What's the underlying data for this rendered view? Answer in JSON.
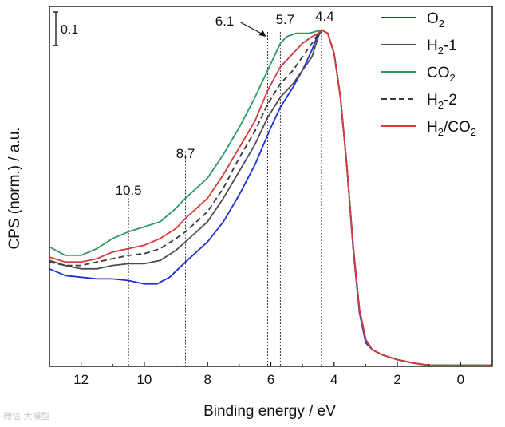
{
  "chart_data": {
    "type": "line",
    "title": "",
    "xlabel": "Binding energy / eV",
    "ylabel": "CPS (norm.) / a.u.",
    "xlim": [
      13,
      -1
    ],
    "ylim": [
      0,
      1.07
    ],
    "x_ticks": [
      12,
      10,
      8,
      6,
      4,
      2,
      0
    ],
    "x_tick_labels": [
      "12",
      "10",
      "8",
      "6",
      "4",
      "2",
      "0"
    ],
    "scale_bar": {
      "label": "0.1",
      "value": 0.1
    },
    "grid": false,
    "legend_position": "top-right",
    "series": [
      {
        "name": "O2",
        "label_main": "O",
        "label_sub": "2",
        "color": "#1f2fd6",
        "dash": "solid",
        "points": [
          [
            13,
            0.29
          ],
          [
            12.5,
            0.27
          ],
          [
            12,
            0.265
          ],
          [
            11.5,
            0.26
          ],
          [
            11,
            0.26
          ],
          [
            10.5,
            0.255
          ],
          [
            10,
            0.245
          ],
          [
            9.6,
            0.245
          ],
          [
            9.2,
            0.265
          ],
          [
            8.7,
            0.31
          ],
          [
            8,
            0.37
          ],
          [
            7.5,
            0.43
          ],
          [
            7,
            0.51
          ],
          [
            6.5,
            0.6
          ],
          [
            6,
            0.71
          ],
          [
            5.7,
            0.77
          ],
          [
            5.3,
            0.83
          ],
          [
            5,
            0.88
          ],
          [
            4.7,
            0.94
          ],
          [
            4.5,
            0.99
          ],
          [
            4.4,
            1.0
          ],
          [
            4.2,
            0.99
          ],
          [
            4,
            0.93
          ],
          [
            3.8,
            0.8
          ],
          [
            3.6,
            0.6
          ],
          [
            3.4,
            0.35
          ],
          [
            3.2,
            0.16
          ],
          [
            3,
            0.07
          ],
          [
            2.8,
            0.05
          ],
          [
            2.5,
            0.035
          ],
          [
            2,
            0.02
          ],
          [
            1.5,
            0.01
          ],
          [
            1,
            0.003
          ],
          [
            0,
            0.003
          ],
          [
            -1,
            0.003
          ]
        ]
      },
      {
        "name": "H2-1",
        "label_main": "H",
        "label_sub": "2",
        "label_suffix": "-1",
        "color": "#4d4d4d",
        "dash": "solid",
        "points": [
          [
            13,
            0.315
          ],
          [
            12.5,
            0.3
          ],
          [
            12,
            0.29
          ],
          [
            11.5,
            0.29
          ],
          [
            11,
            0.3
          ],
          [
            10.5,
            0.305
          ],
          [
            10,
            0.305
          ],
          [
            9.5,
            0.315
          ],
          [
            9,
            0.345
          ],
          [
            8.7,
            0.37
          ],
          [
            8,
            0.43
          ],
          [
            7.5,
            0.5
          ],
          [
            7,
            0.58
          ],
          [
            6.5,
            0.66
          ],
          [
            6.1,
            0.74
          ],
          [
            5.7,
            0.8
          ],
          [
            5.3,
            0.84
          ],
          [
            5,
            0.88
          ],
          [
            4.7,
            0.92
          ],
          [
            4.5,
            0.98
          ],
          [
            4.4,
            1.0
          ],
          [
            4.2,
            0.99
          ],
          [
            4,
            0.93
          ],
          [
            3.8,
            0.8
          ],
          [
            3.6,
            0.6
          ],
          [
            3.4,
            0.36
          ],
          [
            3.2,
            0.17
          ],
          [
            3,
            0.08
          ],
          [
            2.8,
            0.05
          ],
          [
            2.5,
            0.035
          ],
          [
            2,
            0.02
          ],
          [
            1.5,
            0.01
          ],
          [
            1,
            0.003
          ],
          [
            0,
            0.003
          ],
          [
            -1,
            0.003
          ]
        ]
      },
      {
        "name": "CO2",
        "label_main": "CO",
        "label_sub": "2",
        "color": "#2e9a64",
        "dash": "solid",
        "points": [
          [
            13,
            0.355
          ],
          [
            12.5,
            0.33
          ],
          [
            12,
            0.33
          ],
          [
            11.5,
            0.35
          ],
          [
            11,
            0.38
          ],
          [
            10.5,
            0.4
          ],
          [
            10,
            0.415
          ],
          [
            9.5,
            0.43
          ],
          [
            9,
            0.47
          ],
          [
            8.7,
            0.5
          ],
          [
            8,
            0.56
          ],
          [
            7.5,
            0.63
          ],
          [
            7,
            0.71
          ],
          [
            6.5,
            0.8
          ],
          [
            6.1,
            0.88
          ],
          [
            5.7,
            0.96
          ],
          [
            5.5,
            0.98
          ],
          [
            5.2,
            0.99
          ],
          [
            4.8,
            0.99
          ],
          [
            4.6,
            0.995
          ],
          [
            4.4,
            1.0
          ],
          [
            4.2,
            0.99
          ],
          [
            4,
            0.93
          ],
          [
            3.8,
            0.8
          ],
          [
            3.6,
            0.6
          ],
          [
            3.4,
            0.36
          ],
          [
            3.2,
            0.17
          ],
          [
            3,
            0.08
          ],
          [
            2.8,
            0.05
          ],
          [
            2.5,
            0.035
          ],
          [
            2,
            0.02
          ],
          [
            1.5,
            0.01
          ],
          [
            1,
            0.003
          ],
          [
            0,
            0.003
          ],
          [
            -1,
            0.003
          ]
        ]
      },
      {
        "name": "H2-2",
        "label_main": "H",
        "label_sub": "2",
        "label_suffix": "-2",
        "color": "#3a3a3a",
        "dash": "dashed",
        "points": [
          [
            13,
            0.31
          ],
          [
            12.5,
            0.3
          ],
          [
            12,
            0.3
          ],
          [
            11.5,
            0.31
          ],
          [
            11,
            0.32
          ],
          [
            10.5,
            0.33
          ],
          [
            10,
            0.335
          ],
          [
            9.5,
            0.35
          ],
          [
            9,
            0.38
          ],
          [
            8.7,
            0.4
          ],
          [
            8,
            0.46
          ],
          [
            7.5,
            0.53
          ],
          [
            7,
            0.62
          ],
          [
            6.5,
            0.7
          ],
          [
            6.1,
            0.78
          ],
          [
            5.7,
            0.84
          ],
          [
            5.3,
            0.88
          ],
          [
            5,
            0.92
          ],
          [
            4.7,
            0.96
          ],
          [
            4.5,
            0.99
          ],
          [
            4.4,
            1.0
          ],
          [
            4.2,
            0.99
          ],
          [
            4,
            0.93
          ],
          [
            3.8,
            0.8
          ],
          [
            3.6,
            0.6
          ],
          [
            3.4,
            0.36
          ],
          [
            3.2,
            0.17
          ],
          [
            3,
            0.08
          ],
          [
            2.8,
            0.05
          ],
          [
            2.5,
            0.035
          ],
          [
            2,
            0.02
          ],
          [
            1.5,
            0.01
          ],
          [
            1,
            0.003
          ],
          [
            0,
            0.003
          ],
          [
            -1,
            0.003
          ]
        ]
      },
      {
        "name": "H2/CO2",
        "label_main": "H",
        "label_sub": "2",
        "label_suffix": "/CO",
        "label_sub2": "2",
        "color": "#d63a3a",
        "dash": "solid",
        "points": [
          [
            13,
            0.325
          ],
          [
            12.5,
            0.31
          ],
          [
            12,
            0.31
          ],
          [
            11.5,
            0.32
          ],
          [
            11,
            0.34
          ],
          [
            10.5,
            0.35
          ],
          [
            10,
            0.36
          ],
          [
            9.5,
            0.38
          ],
          [
            9,
            0.41
          ],
          [
            8.7,
            0.44
          ],
          [
            8,
            0.5
          ],
          [
            7.5,
            0.57
          ],
          [
            7,
            0.65
          ],
          [
            6.5,
            0.73
          ],
          [
            6.1,
            0.82
          ],
          [
            5.7,
            0.89
          ],
          [
            5.3,
            0.93
          ],
          [
            5,
            0.96
          ],
          [
            4.7,
            0.98
          ],
          [
            4.5,
            0.99
          ],
          [
            4.4,
            1.0
          ],
          [
            4.2,
            0.99
          ],
          [
            4,
            0.93
          ],
          [
            3.8,
            0.8
          ],
          [
            3.6,
            0.6
          ],
          [
            3.4,
            0.36
          ],
          [
            3.2,
            0.17
          ],
          [
            3,
            0.08
          ],
          [
            2.8,
            0.05
          ],
          [
            2.5,
            0.035
          ],
          [
            2,
            0.02
          ],
          [
            1.5,
            0.01
          ],
          [
            1,
            0.003
          ],
          [
            0,
            0.003
          ],
          [
            -1,
            0.003
          ]
        ]
      }
    ],
    "annotations": [
      {
        "label": "10.5",
        "x": 10.5,
        "y_top": 0.51,
        "arrow": false
      },
      {
        "label": "8.7",
        "x": 8.7,
        "y_top": 0.63,
        "arrow": false
      },
      {
        "label": "6.1",
        "x": 6.1,
        "y_top": 1.0,
        "arrow": true
      },
      {
        "label": "5.7",
        "x": 5.7,
        "y_top": 1.0,
        "arrow": false
      },
      {
        "label": "4.4",
        "x": 4.4,
        "y_top": 1.0,
        "arrow": false
      }
    ]
  },
  "watermark": "微信 大模型"
}
